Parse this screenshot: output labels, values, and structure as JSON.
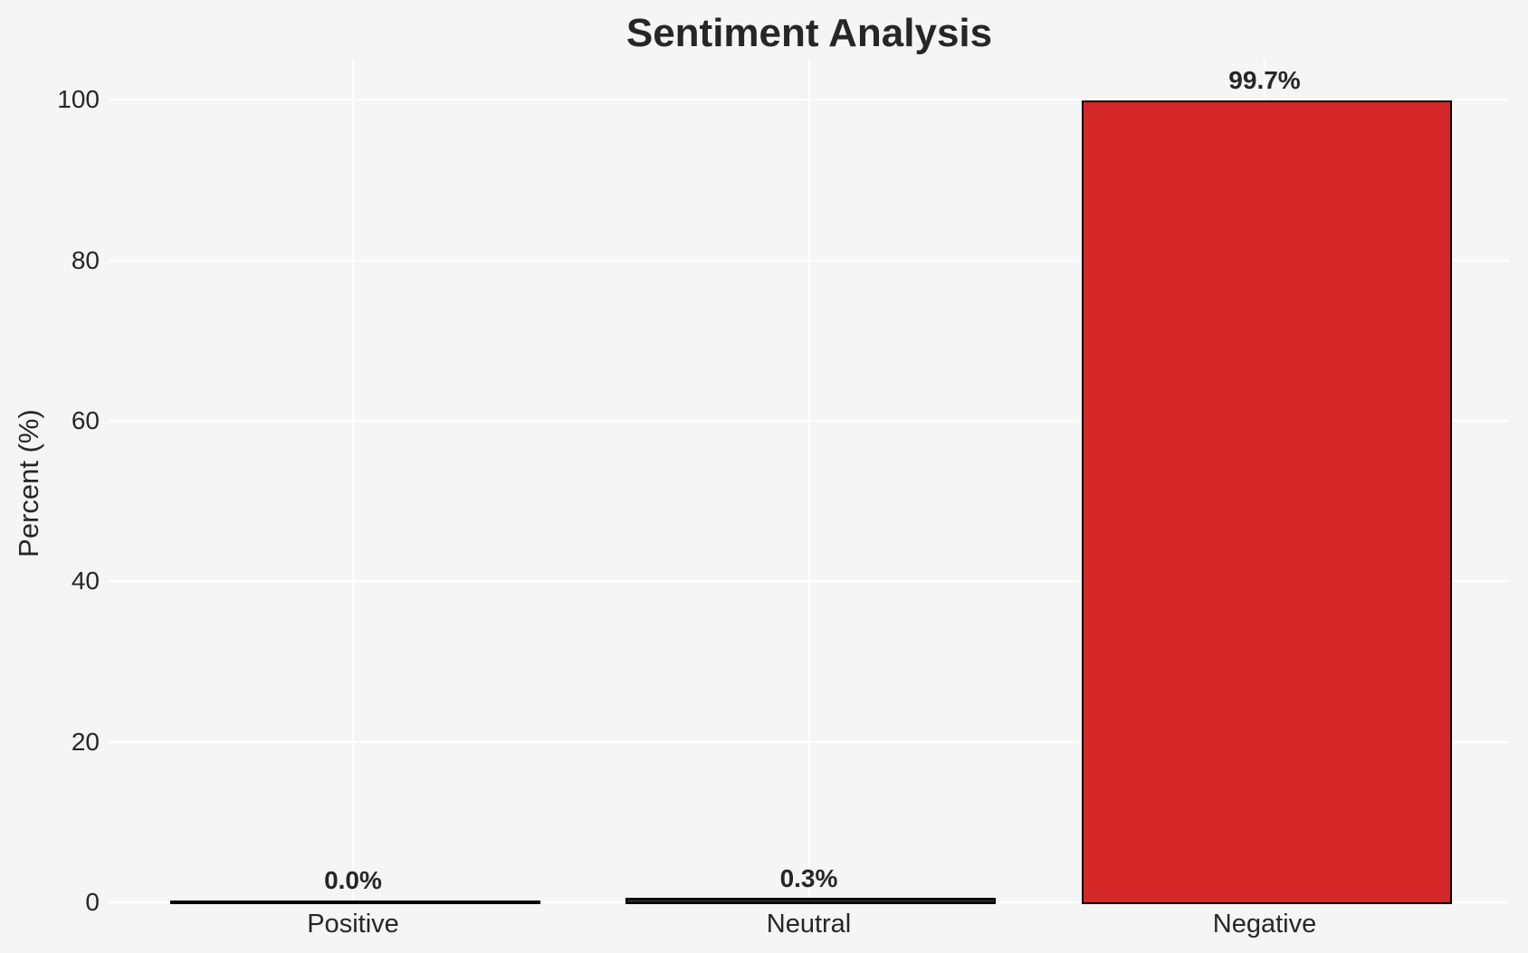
{
  "chart_data": {
    "type": "bar",
    "title": "Sentiment Analysis",
    "categories": [
      "Positive",
      "Neutral",
      "Negative"
    ],
    "values": [
      0.0,
      0.3,
      99.7
    ],
    "value_labels": [
      "0.0%",
      "0.3%",
      "99.7%"
    ],
    "bar_colors": [
      "#222222",
      "#222222",
      "#d62728"
    ],
    "bar_edge_color": "#000000",
    "xlabel": "",
    "ylabel": "Percent (%)",
    "yticks": [
      0,
      20,
      40,
      60,
      80,
      100
    ],
    "ylim": [
      0,
      105
    ],
    "grid": "both",
    "grid_color": "#ffffff",
    "background_color": "#f5f5f5",
    "text_color": "#262626",
    "legend": "none"
  }
}
